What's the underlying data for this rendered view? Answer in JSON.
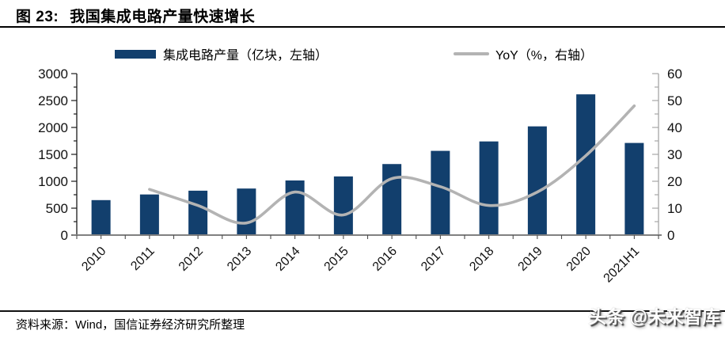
{
  "figure": {
    "title_label": "图 23:",
    "title_text": "我国集成电路产量快速增长",
    "source": "资料来源：Wind，国信证券经济研究所整理",
    "watermark": "头条 @未来智库"
  },
  "legend": {
    "bars_label": "集成电路产量（亿块，左轴）",
    "line_label": "YoY（%，右轴）"
  },
  "colors": {
    "bar": "#123f6d",
    "line": "#b3b3b3",
    "left_axis": "#1a1a1a",
    "right_axis": "#a6a6a6",
    "baseline": "#808080",
    "tick": "#4d4d4d",
    "label": "#111111"
  },
  "chart_data": {
    "type": "bar",
    "subtype": "bar+line dual axis",
    "categories": [
      "2010",
      "2011",
      "2012",
      "2013",
      "2014",
      "2015",
      "2016",
      "2017",
      "2018",
      "2019",
      "2020",
      "2021H1"
    ],
    "series": [
      {
        "name": "集成电路产量（亿块，左轴）",
        "type": "bar",
        "axis": "left",
        "values": [
          650,
          755,
          825,
          865,
          1015,
          1090,
          1320,
          1565,
          1740,
          2020,
          2615,
          1712
        ]
      },
      {
        "name": "YoY（%，右轴）",
        "type": "line",
        "axis": "right",
        "smooth": true,
        "values": [
          null,
          17,
          11,
          4.5,
          16,
          7.5,
          21,
          18,
          11,
          16,
          29.5,
          48
        ]
      }
    ],
    "left_axis": {
      "label": "亿块",
      "min": 0,
      "max": 3000,
      "major_step": 500,
      "minor_step": 250,
      "ticks": [
        0,
        500,
        1000,
        1500,
        2000,
        2500,
        3000
      ]
    },
    "right_axis": {
      "label": "%",
      "min": 0,
      "max": 60,
      "major_step": 10,
      "minor_step": 5,
      "ticks": [
        0,
        10,
        20,
        30,
        40,
        50,
        60
      ]
    },
    "grid": false,
    "legend_position": "top"
  }
}
